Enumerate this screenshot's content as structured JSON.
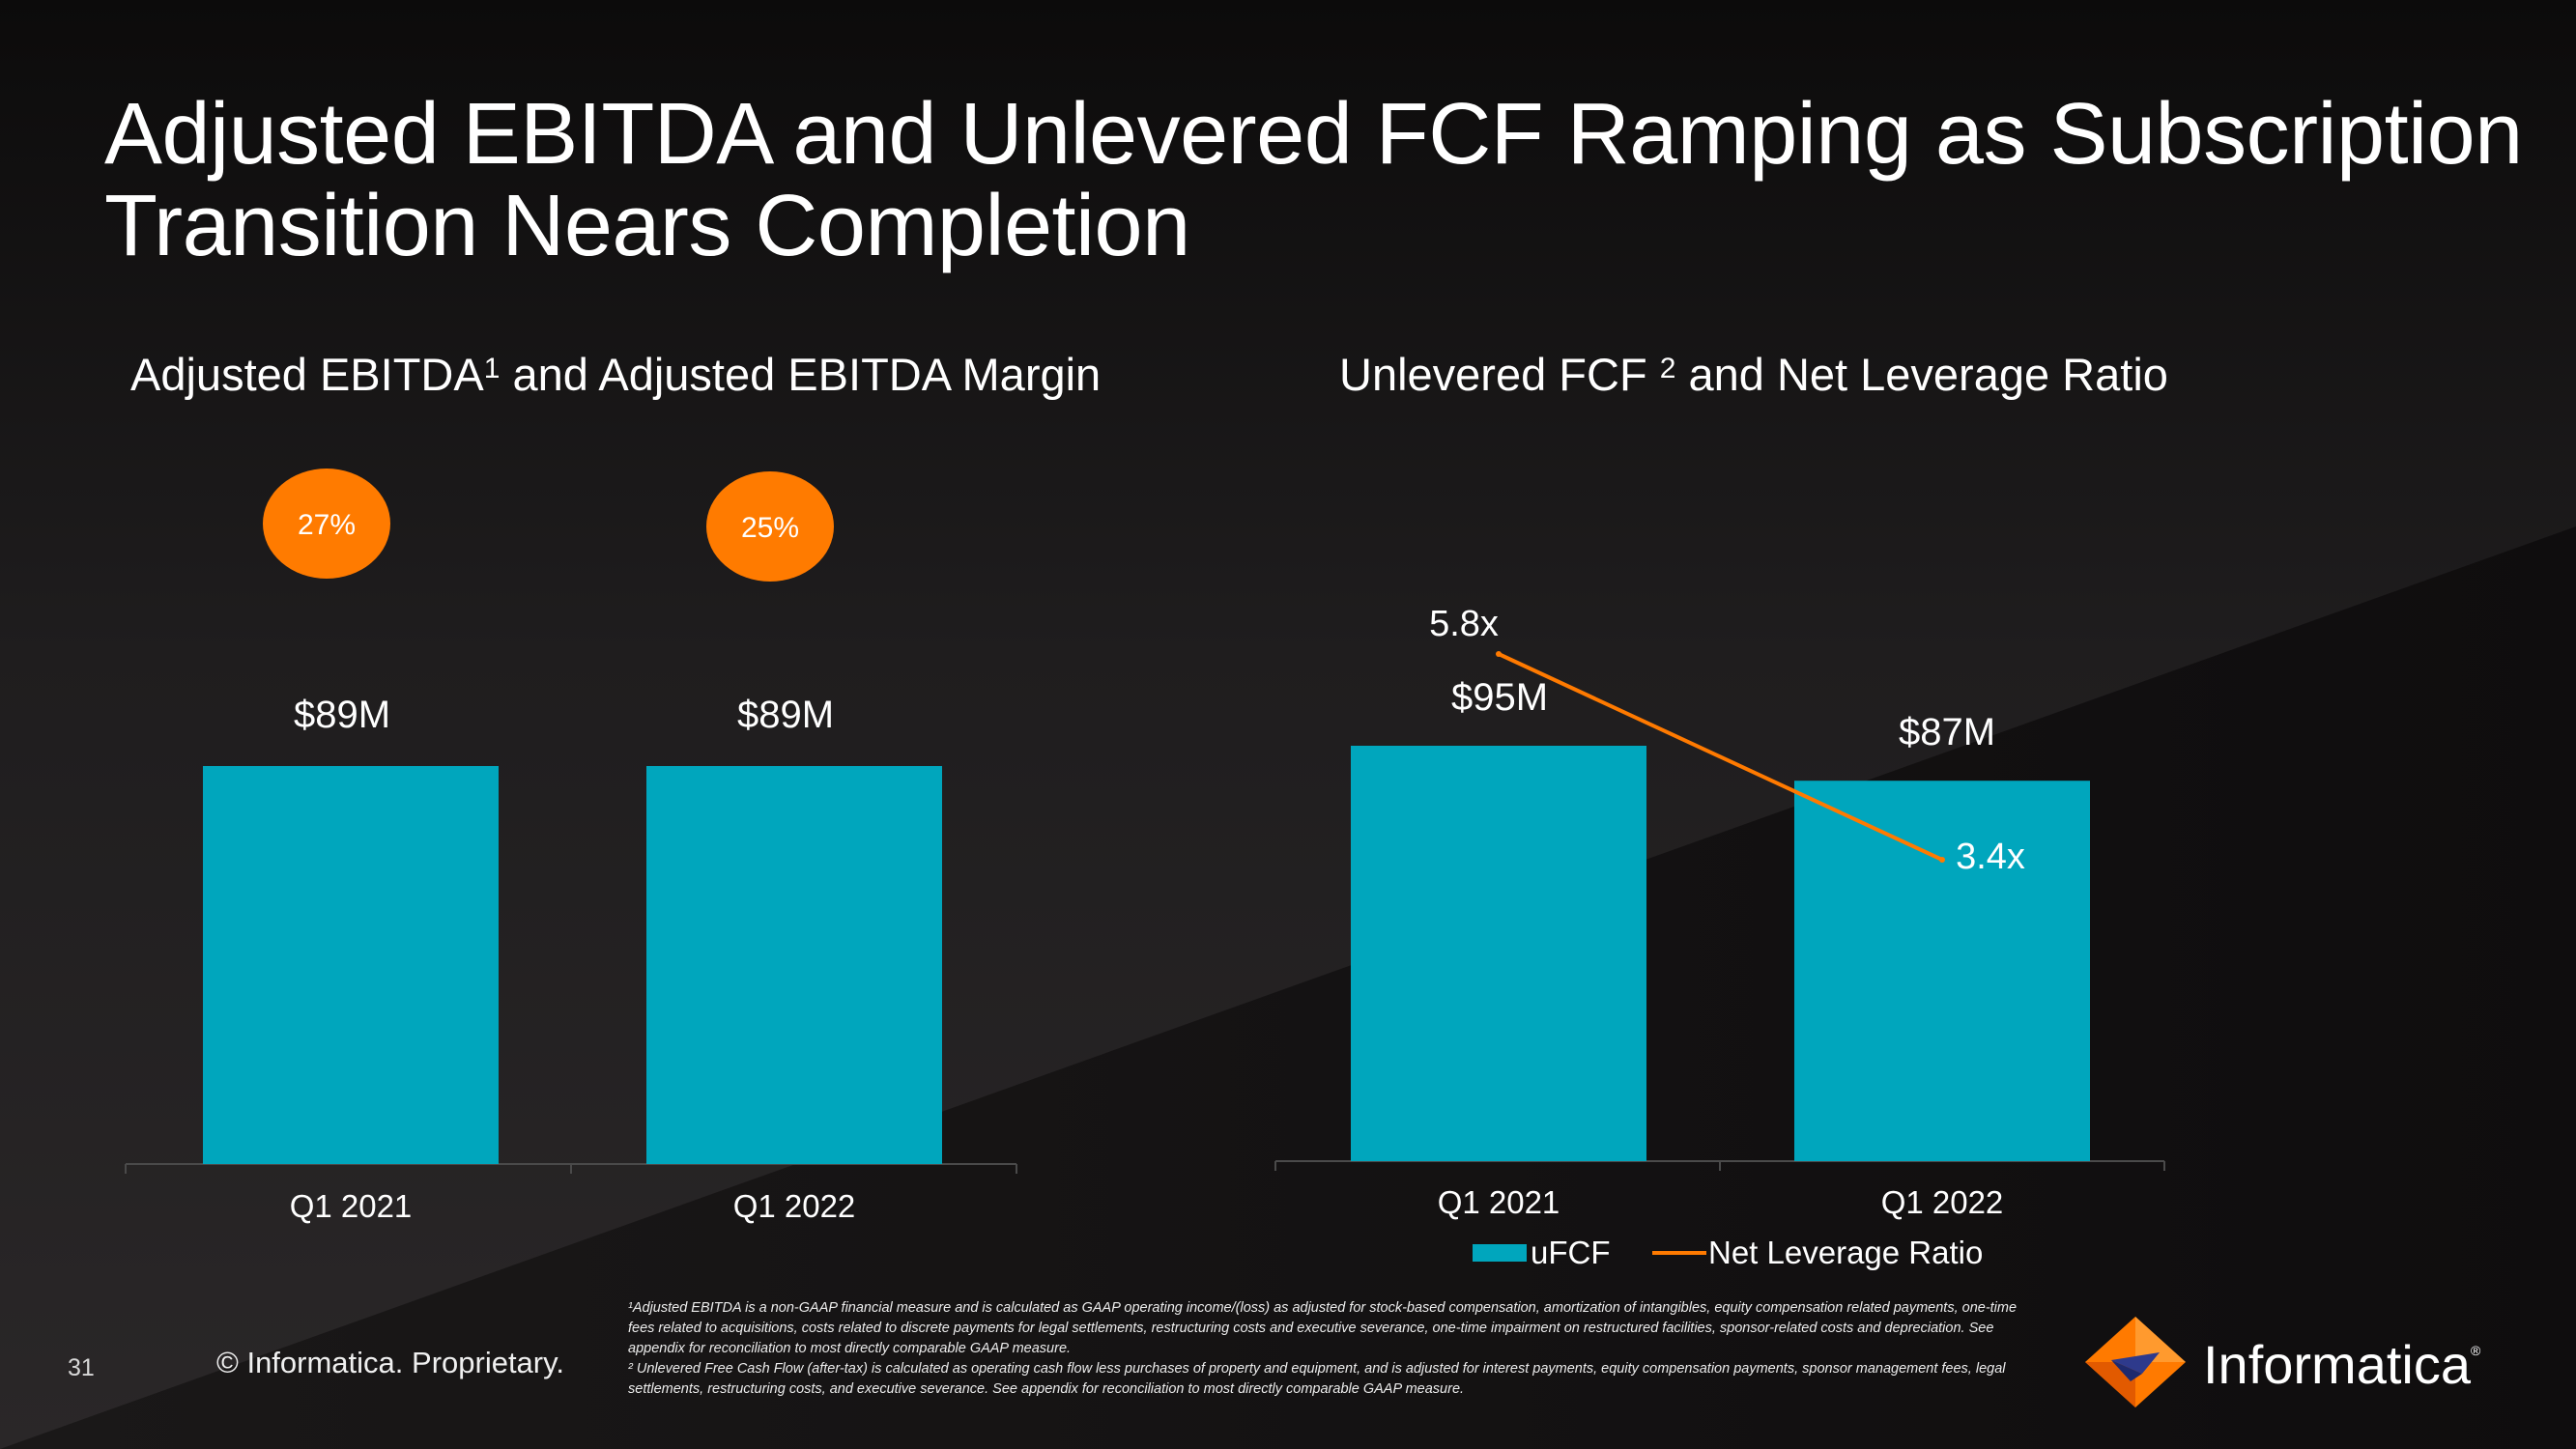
{
  "title_lines": [
    "Adjusted EBITDA and Unlevered FCF Ramping as Subscription",
    "Transition Nears Completion"
  ],
  "footer": {
    "page_number": "31",
    "copyright": "© Informatica. Proprietary.",
    "brand": "Informatica",
    "brand_mark": "®",
    "footnote_1": "¹Adjusted EBITDA is a  non-GAAP  financial measure and is calculated as GAAP operating income/(loss) as adjusted for stock-based compensation, amortization of intangibles, equity compensation related payments, one-time fees related to acquisitions, costs related to discrete payments for legal settlements, restructuring costs and executive severance, one-time impairment on restructured facilities, sponsor-related costs and depreciation. See appendix for reconciliation to most directly comparable GAAP measure.",
    "footnote_2": "² Unlevered Free Cash Flow (after-tax) is calculated as operating cash flow less purchases of property and equipment, and is adjusted for interest payments, equity compensation payments, sponsor management fees, legal settlements, restructuring costs, and executive severance. See appendix for reconciliation to most directly comparable GAAP measure."
  },
  "colors": {
    "bar": "#00a6bd",
    "line": "#ff7a00",
    "badge": "#ff7b00",
    "axis": "#4a4a4a"
  },
  "chart_data": [
    {
      "type": "bar",
      "title": "Adjusted EBITDA",
      "title_sup": "1",
      "title_rest": " and Adjusted EBITDA Margin",
      "categories": [
        "Q1 2021",
        "Q1 2022"
      ],
      "series": [
        {
          "name": "Adjusted EBITDA ($M)",
          "values": [
            89,
            89
          ]
        }
      ],
      "data_labels": [
        "$89M",
        "$89M"
      ],
      "margins": [
        27,
        25
      ],
      "margin_labels": [
        "27%",
        "25%"
      ],
      "ylim": [
        0,
        89
      ]
    },
    {
      "type": "bar+line",
      "title": "Unlevered FCF ",
      "title_sup": "2",
      "title_rest": " and Net Leverage Ratio",
      "categories": [
        "Q1 2021",
        "Q1 2022"
      ],
      "series": [
        {
          "name": "uFCF",
          "values": [
            95,
            87
          ],
          "data_labels": [
            "$95M",
            "$87M"
          ]
        },
        {
          "name": "Net Leverage Ratio",
          "values": [
            5.8,
            3.4
          ],
          "data_labels": [
            "5.8x",
            "3.4x"
          ]
        }
      ],
      "legend": [
        "uFCF",
        "Net Leverage Ratio"
      ],
      "legend_position": "bottom",
      "ylim": [
        0,
        95
      ],
      "line_ylim": [
        3.4,
        5.8
      ]
    }
  ]
}
